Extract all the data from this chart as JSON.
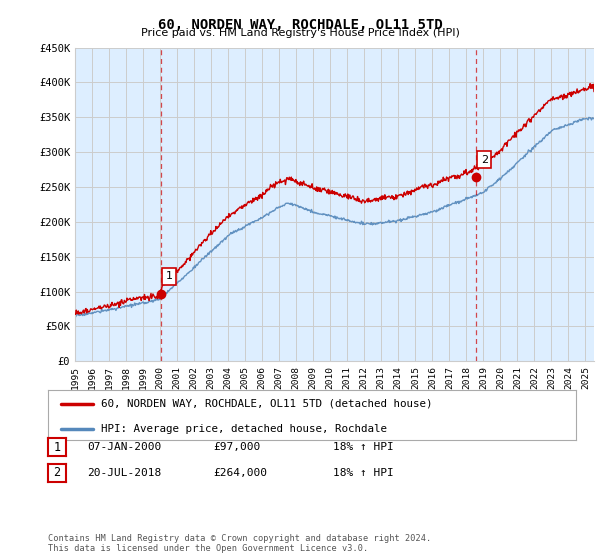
{
  "title": "60, NORDEN WAY, ROCHDALE, OL11 5TD",
  "subtitle": "Price paid vs. HM Land Registry's House Price Index (HPI)",
  "legend_label_red": "60, NORDEN WAY, ROCHDALE, OL11 5TD (detached house)",
  "legend_label_blue": "HPI: Average price, detached house, Rochdale",
  "footnote": "Contains HM Land Registry data © Crown copyright and database right 2024.\nThis data is licensed under the Open Government Licence v3.0.",
  "table_rows": [
    {
      "num": "1",
      "date": "07-JAN-2000",
      "price": "£97,000",
      "hpi": "18% ↑ HPI"
    },
    {
      "num": "2",
      "date": "20-JUL-2018",
      "price": "£264,000",
      "hpi": "18% ↑ HPI"
    }
  ],
  "marker1_x": 2000.04,
  "marker1_y": 97000,
  "marker2_x": 2018.55,
  "marker2_y": 264000,
  "vline1_x": 2000.04,
  "vline2_x": 2018.55,
  "ylim": [
    0,
    450000
  ],
  "xlim_start": 1995.0,
  "xlim_end": 2025.5,
  "ytick_values": [
    0,
    50000,
    100000,
    150000,
    200000,
    250000,
    300000,
    350000,
    400000,
    450000
  ],
  "ytick_labels": [
    "£0",
    "£50K",
    "£100K",
    "£150K",
    "£200K",
    "£250K",
    "£300K",
    "£350K",
    "£400K",
    "£450K"
  ],
  "xtick_years": [
    1995,
    1996,
    1997,
    1998,
    1999,
    2000,
    2001,
    2002,
    2003,
    2004,
    2005,
    2006,
    2007,
    2008,
    2009,
    2010,
    2011,
    2012,
    2013,
    2014,
    2015,
    2016,
    2017,
    2018,
    2019,
    2020,
    2021,
    2022,
    2023,
    2024,
    2025
  ],
  "red_color": "#cc0000",
  "blue_color": "#5588bb",
  "fill_color": "#ddeeff",
  "vline_color": "#cc0000",
  "background_color": "#ffffff",
  "grid_color": "#cccccc"
}
